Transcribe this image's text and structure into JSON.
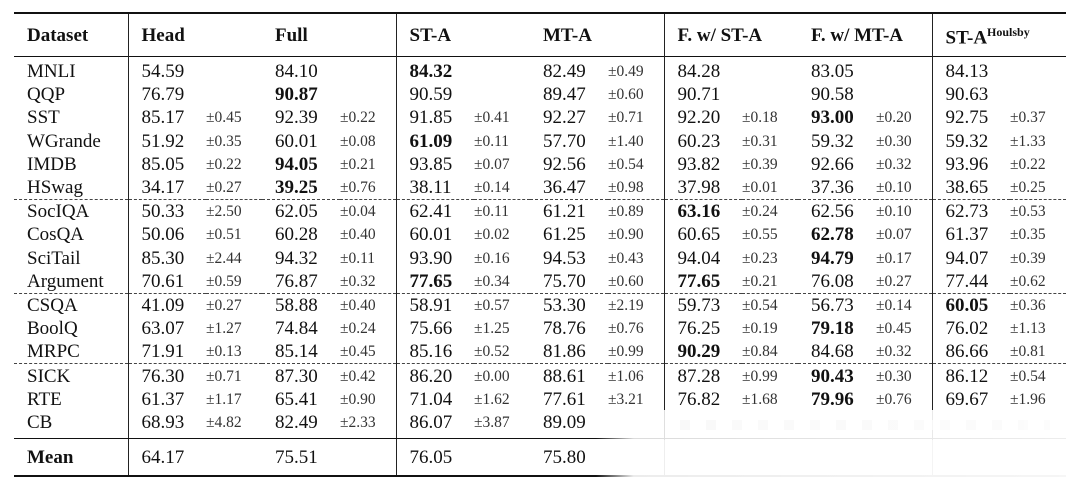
{
  "header": {
    "dataset": "Dataset",
    "head": "Head",
    "full": "Full",
    "sta": "ST-A",
    "mta": "MT-A",
    "fwsta": "F. w/ ST-A",
    "fwmta": "F. w/ MT-A",
    "sth_base": "ST-A",
    "sth_sup": "Houlsby"
  },
  "rows": [
    {
      "d": "MNLI",
      "c": [
        [
          "54.59",
          ""
        ],
        [
          "84.10",
          ""
        ],
        [
          "84.32",
          ""
        ],
        [
          "82.49",
          "±0.49"
        ],
        [
          "84.28",
          ""
        ],
        [
          "83.05",
          ""
        ],
        [
          "84.13",
          ""
        ]
      ],
      "bold": [
        2
      ]
    },
    {
      "d": "QQP",
      "c": [
        [
          "76.79",
          ""
        ],
        [
          "90.87",
          ""
        ],
        [
          "90.59",
          ""
        ],
        [
          "89.47",
          "±0.60"
        ],
        [
          "90.71",
          ""
        ],
        [
          "90.58",
          ""
        ],
        [
          "90.63",
          ""
        ]
      ],
      "bold": [
        1
      ]
    },
    {
      "d": "SST",
      "c": [
        [
          "85.17",
          "±0.45"
        ],
        [
          "92.39",
          "±0.22"
        ],
        [
          "91.85",
          "±0.41"
        ],
        [
          "92.27",
          "±0.71"
        ],
        [
          "92.20",
          "±0.18"
        ],
        [
          "93.00",
          "±0.20"
        ],
        [
          "92.75",
          "±0.37"
        ]
      ],
      "bold": [
        5
      ]
    },
    {
      "d": "WGrande",
      "c": [
        [
          "51.92",
          "±0.35"
        ],
        [
          "60.01",
          "±0.08"
        ],
        [
          "61.09",
          "±0.11"
        ],
        [
          "57.70",
          "±1.40"
        ],
        [
          "60.23",
          "±0.31"
        ],
        [
          "59.32",
          "±0.30"
        ],
        [
          "59.32",
          "±1.33"
        ]
      ],
      "bold": [
        2
      ]
    },
    {
      "d": "IMDB",
      "c": [
        [
          "85.05",
          "±0.22"
        ],
        [
          "94.05",
          "±0.21"
        ],
        [
          "93.85",
          "±0.07"
        ],
        [
          "92.56",
          "±0.54"
        ],
        [
          "93.82",
          "±0.39"
        ],
        [
          "92.66",
          "±0.32"
        ],
        [
          "93.96",
          "±0.22"
        ]
      ],
      "bold": [
        1
      ]
    },
    {
      "d": "HSwag",
      "c": [
        [
          "34.17",
          "±0.27"
        ],
        [
          "39.25",
          "±0.76"
        ],
        [
          "38.11",
          "±0.14"
        ],
        [
          "36.47",
          "±0.98"
        ],
        [
          "37.98",
          "±0.01"
        ],
        [
          "37.36",
          "±0.10"
        ],
        [
          "38.65",
          "±0.25"
        ]
      ],
      "bold": [
        1
      ]
    },
    {
      "d": "SocIQA",
      "c": [
        [
          "50.33",
          "±2.50"
        ],
        [
          "62.05",
          "±0.04"
        ],
        [
          "62.41",
          "±0.11"
        ],
        [
          "61.21",
          "±0.89"
        ],
        [
          "63.16",
          "±0.24"
        ],
        [
          "62.56",
          "±0.10"
        ],
        [
          "62.73",
          "±0.53"
        ]
      ],
      "bold": [
        4
      ]
    },
    {
      "d": "CosQA",
      "c": [
        [
          "50.06",
          "±0.51"
        ],
        [
          "60.28",
          "±0.40"
        ],
        [
          "60.01",
          "±0.02"
        ],
        [
          "61.25",
          "±0.90"
        ],
        [
          "60.65",
          "±0.55"
        ],
        [
          "62.78",
          "±0.07"
        ],
        [
          "61.37",
          "±0.35"
        ]
      ],
      "bold": [
        5
      ]
    },
    {
      "d": "SciTail",
      "c": [
        [
          "85.30",
          "±2.44"
        ],
        [
          "94.32",
          "±0.11"
        ],
        [
          "93.90",
          "±0.16"
        ],
        [
          "94.53",
          "±0.43"
        ],
        [
          "94.04",
          "±0.23"
        ],
        [
          "94.79",
          "±0.17"
        ],
        [
          "94.07",
          "±0.39"
        ]
      ],
      "bold": [
        5
      ]
    },
    {
      "d": "Argument",
      "c": [
        [
          "70.61",
          "±0.59"
        ],
        [
          "76.87",
          "±0.32"
        ],
        [
          "77.65",
          "±0.34"
        ],
        [
          "75.70",
          "±0.60"
        ],
        [
          "77.65",
          "±0.21"
        ],
        [
          "76.08",
          "±0.27"
        ],
        [
          "77.44",
          "±0.62"
        ]
      ],
      "bold": [
        2,
        4
      ]
    },
    {
      "d": "CSQA",
      "c": [
        [
          "41.09",
          "±0.27"
        ],
        [
          "58.88",
          "±0.40"
        ],
        [
          "58.91",
          "±0.57"
        ],
        [
          "53.30",
          "±2.19"
        ],
        [
          "59.73",
          "±0.54"
        ],
        [
          "56.73",
          "±0.14"
        ],
        [
          "60.05",
          "±0.36"
        ]
      ],
      "bold": [
        6
      ]
    },
    {
      "d": "BoolQ",
      "c": [
        [
          "63.07",
          "±1.27"
        ],
        [
          "74.84",
          "±0.24"
        ],
        [
          "75.66",
          "±1.25"
        ],
        [
          "78.76",
          "±0.76"
        ],
        [
          "76.25",
          "±0.19"
        ],
        [
          "79.18",
          "±0.45"
        ],
        [
          "76.02",
          "±1.13"
        ]
      ],
      "bold": [
        5
      ]
    },
    {
      "d": "MRPC",
      "c": [
        [
          "71.91",
          "±0.13"
        ],
        [
          "85.14",
          "±0.45"
        ],
        [
          "85.16",
          "±0.52"
        ],
        [
          "81.86",
          "±0.99"
        ],
        [
          "90.29",
          "±0.84"
        ],
        [
          "84.68",
          "±0.32"
        ],
        [
          "86.66",
          "±0.81"
        ]
      ],
      "bold": [
        4
      ]
    },
    {
      "d": "SICK",
      "c": [
        [
          "76.30",
          "±0.71"
        ],
        [
          "87.30",
          "±0.42"
        ],
        [
          "86.20",
          "±0.00"
        ],
        [
          "88.61",
          "±1.06"
        ],
        [
          "87.28",
          "±0.99"
        ],
        [
          "90.43",
          "±0.30"
        ],
        [
          "86.12",
          "±0.54"
        ]
      ],
      "bold": [
        5
      ]
    },
    {
      "d": "RTE",
      "c": [
        [
          "61.37",
          "±1.17"
        ],
        [
          "65.41",
          "±0.90"
        ],
        [
          "71.04",
          "±1.62"
        ],
        [
          "77.61",
          "±3.21"
        ],
        [
          "76.82",
          "±1.68"
        ],
        [
          "79.96",
          "±0.76"
        ],
        [
          "69.67",
          "±1.96"
        ]
      ],
      "bold": [
        5
      ]
    },
    {
      "d": "CB",
      "c": [
        [
          "68.93",
          "±4.82"
        ],
        [
          "82.49",
          "±2.33"
        ],
        [
          "86.07",
          "±3.87"
        ],
        [
          "89.09",
          ""
        ],
        [
          "",
          ""
        ],
        [
          "",
          ""
        ],
        [
          "",
          ""
        ]
      ],
      "bold": []
    }
  ],
  "mean": {
    "label": "Mean",
    "c": [
      "64.17",
      "75.51",
      "76.05",
      "75.80",
      "",
      "",
      ""
    ]
  }
}
